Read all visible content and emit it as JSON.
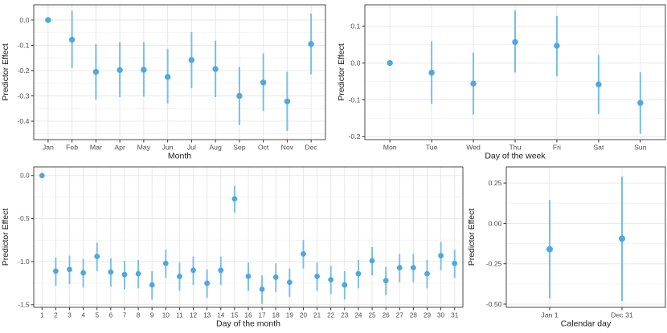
{
  "page": {
    "background": "#ffffff"
  },
  "style": {
    "point_color": "#4fa8dd",
    "bar_color": "#77bee9",
    "grid_major": "#e8e8e8",
    "grid_minor": "#f4f4f4",
    "panel_border": "#4a4a4a",
    "panel_bg": "#ffffff",
    "tick_mark_color": "#333333",
    "tick_label_color": "#4d4d4d",
    "axis_title_color": "#1a1a1a"
  },
  "chart_data": [
    {
      "id": "month-effect",
      "type": "pointrange-scatter",
      "title": "",
      "xlabel": "Month",
      "ylabel": "Predictor Effect",
      "categories": [
        "Jan",
        "Feb",
        "Mar",
        "Apr",
        "May",
        "Jun",
        "Jul",
        "Aug",
        "Sep",
        "Oct",
        "Nov",
        "Dec"
      ],
      "values": [
        0.0,
        -0.078,
        -0.205,
        -0.198,
        -0.197,
        -0.225,
        -0.158,
        -0.194,
        -0.3,
        -0.247,
        -0.322,
        -0.095
      ],
      "lower": [
        null,
        -0.19,
        -0.315,
        -0.305,
        -0.303,
        -0.33,
        -0.27,
        -0.305,
        -0.415,
        -0.36,
        -0.438,
        -0.215
      ],
      "upper": [
        null,
        0.037,
        -0.095,
        -0.088,
        -0.088,
        -0.115,
        -0.048,
        -0.082,
        -0.185,
        -0.132,
        -0.205,
        0.025
      ],
      "yticks": [
        0.0,
        -0.1,
        -0.2,
        -0.3,
        -0.4
      ],
      "ytick_labels": [
        "0.0",
        "-0.1",
        "-0.2",
        "-0.3",
        "-0.4"
      ],
      "ylim": [
        -0.473,
        0.06
      ],
      "grid": true,
      "legend": "none"
    },
    {
      "id": "weekday-effect",
      "type": "pointrange-scatter",
      "title": "",
      "xlabel": "Day of the week",
      "ylabel": "Predictor Effect",
      "categories": [
        "Mon",
        "Tue",
        "Wed",
        "Thu",
        "Fri",
        "Sat",
        "Sun"
      ],
      "values": [
        0.0,
        -0.026,
        -0.056,
        0.057,
        0.047,
        -0.058,
        -0.108
      ],
      "lower": [
        null,
        -0.111,
        -0.14,
        -0.026,
        -0.036,
        -0.138,
        -0.192
      ],
      "upper": [
        null,
        0.059,
        0.028,
        0.143,
        0.128,
        0.022,
        -0.025
      ],
      "yticks": [
        0.1,
        0.0,
        -0.1,
        -0.2
      ],
      "ytick_labels": [
        "0.1",
        "0.0",
        "-0.1",
        "-0.2"
      ],
      "ylim": [
        -0.208,
        0.158
      ],
      "grid": true,
      "legend": "none"
    },
    {
      "id": "day-of-month-effect",
      "type": "pointrange-scatter",
      "title": "",
      "xlabel": "Day of the month",
      "ylabel": "Predictor Effect",
      "categories": [
        "1",
        "2",
        "3",
        "4",
        "5",
        "6",
        "7",
        "8",
        "9",
        "10",
        "11",
        "12",
        "13",
        "14",
        "15",
        "16",
        "17",
        "18",
        "19",
        "20",
        "21",
        "22",
        "23",
        "24",
        "25",
        "26",
        "27",
        "28",
        "29",
        "30",
        "31"
      ],
      "values": [
        0.0,
        -1.11,
        -1.09,
        -1.13,
        -0.94,
        -1.12,
        -1.15,
        -1.14,
        -1.27,
        -1.02,
        -1.17,
        -1.1,
        -1.25,
        -1.1,
        -0.27,
        -1.17,
        -1.32,
        -1.18,
        -1.24,
        -0.91,
        -1.17,
        -1.21,
        -1.27,
        -1.14,
        -0.99,
        -1.22,
        -1.07,
        -1.07,
        -1.14,
        -0.93,
        -1.02
      ],
      "lower": [
        null,
        -1.28,
        -1.26,
        -1.3,
        -1.11,
        -1.29,
        -1.32,
        -1.31,
        -1.44,
        -1.19,
        -1.34,
        -1.27,
        -1.42,
        -1.27,
        -0.43,
        -1.34,
        -1.49,
        -1.35,
        -1.41,
        -1.08,
        -1.34,
        -1.38,
        -1.44,
        -1.31,
        -1.16,
        -1.39,
        -1.24,
        -1.24,
        -1.31,
        -1.1,
        -1.19
      ],
      "upper": [
        null,
        -0.95,
        -0.93,
        -0.97,
        -0.78,
        -0.96,
        -0.99,
        -0.98,
        -1.11,
        -0.86,
        -1.01,
        -0.94,
        -1.09,
        -0.94,
        -0.12,
        -1.01,
        -1.16,
        -1.02,
        -1.08,
        -0.75,
        -1.01,
        -1.05,
        -1.11,
        -0.98,
        -0.83,
        -1.06,
        -0.91,
        -0.91,
        -0.98,
        -0.77,
        -0.86
      ],
      "yticks": [
        0.0,
        -0.5,
        -1.0,
        -1.5
      ],
      "ytick_labels": [
        "0.0",
        "-0.5",
        "-1.0",
        "-1.5"
      ],
      "ylim": [
        -1.53,
        0.1
      ],
      "grid": true,
      "legend": "none"
    },
    {
      "id": "calendar-day-effect",
      "type": "pointrange-scatter",
      "title": "",
      "xlabel": "Calendar day",
      "ylabel": "Predictor Effect",
      "categories": [
        "Jan 1",
        "Dec 31"
      ],
      "values": [
        -0.16,
        -0.095
      ],
      "lower": [
        -0.465,
        -0.48
      ],
      "upper": [
        0.145,
        0.29
      ],
      "yticks": [
        0.25,
        0.0,
        -0.25,
        -0.5
      ],
      "ytick_labels": [
        "0.25",
        "0.00",
        "-0.25",
        "-0.50"
      ],
      "ylim": [
        -0.52,
        0.35
      ],
      "grid": true,
      "legend": "none"
    }
  ]
}
